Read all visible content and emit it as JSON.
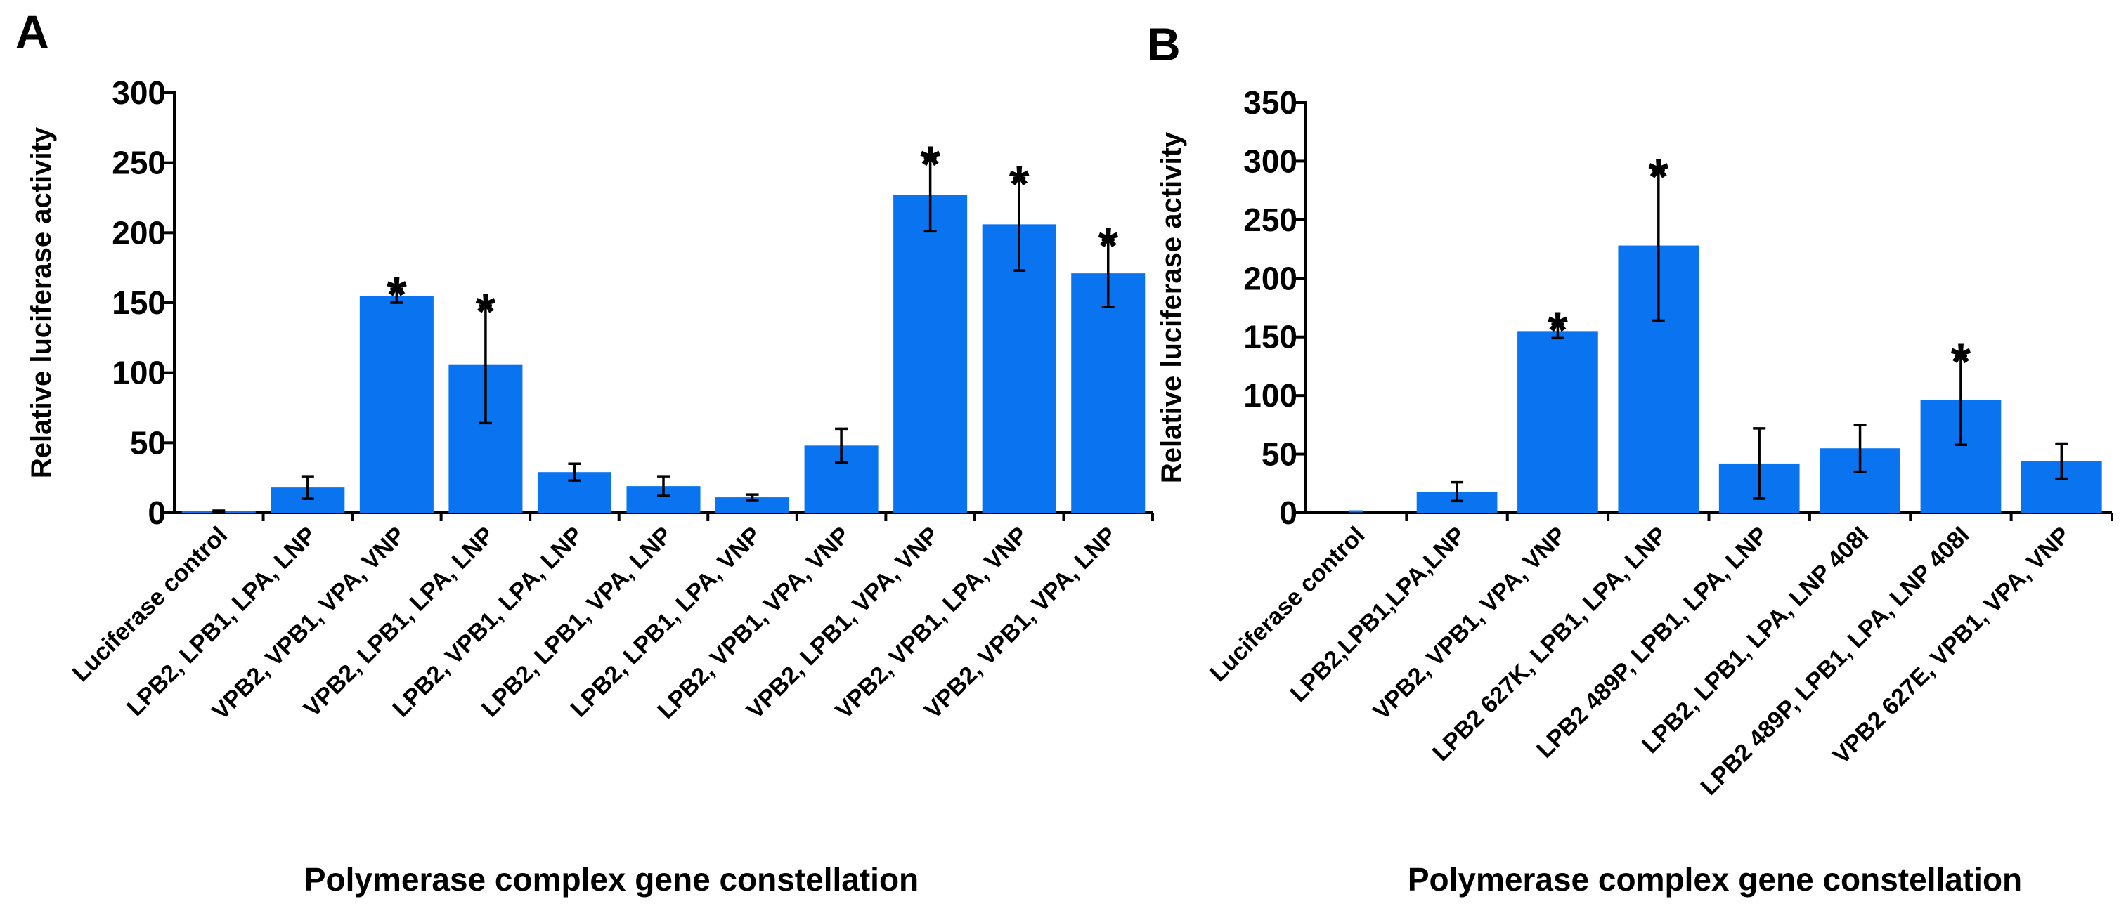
{
  "chart_data": [
    {
      "panel": "A",
      "type": "bar",
      "title": "",
      "xlabel": "Polymerase complex gene constellation",
      "ylabel": "Relative luciferase activity",
      "ylim": [
        0,
        300
      ],
      "yticks": [
        0,
        50,
        100,
        150,
        200,
        250,
        300
      ],
      "categories": [
        "Luciferase control",
        "LPB2, LPB1, LPA, LNP",
        "VPB2, VPB1, VPA, VNP",
        "VPB2, LPB1, LPA, LNP",
        "LPB2, VPB1, LPA, LNP",
        "LPB2, LPB1, VPA, LNP",
        "LPB2, LPB1, LPA, VNP",
        "LPB2, VPB1, VPA, VNP",
        "VPB2, LPB1, VPA, VNP",
        "VPB2, VPB1, LPA, VNP",
        "VPB2, VPB1, VPA, LNP"
      ],
      "values": [
        1,
        18,
        155,
        106,
        29,
        19,
        11,
        48,
        227,
        206,
        171
      ],
      "errors": [
        0.5,
        8,
        5,
        42,
        6,
        7,
        2,
        12,
        26,
        33,
        24
      ],
      "significant": [
        false,
        false,
        true,
        true,
        false,
        false,
        false,
        false,
        true,
        true,
        true
      ],
      "significance_marker": "*"
    },
    {
      "panel": "B",
      "type": "bar",
      "title": "",
      "xlabel": "Polymerase complex gene constellation",
      "ylabel": "Relative luciferase activity",
      "ylim": [
        0,
        350
      ],
      "yticks": [
        0,
        50,
        100,
        150,
        200,
        250,
        300,
        350
      ],
      "categories": [
        "Luciferase control",
        "LPB2,LPB1,LPA,LNP",
        "VPB2, VPB1, VPA, VNP",
        "LPB2 627K, LPB1, LPA, LNP",
        "LPB2 489P, LPB1, LPA, LNP",
        "LPB2, LPB1, LPA, LNP 408I",
        "LPB2 489P, LPB1, LPA, LNP 408I",
        "VPB2 627E, VPB1, VPA, VNP"
      ],
      "values": [
        0,
        18,
        155,
        228,
        42,
        55,
        96,
        44
      ],
      "errors": [
        0,
        8,
        6,
        64,
        30,
        20,
        38,
        15
      ],
      "significant": [
        false,
        false,
        true,
        true,
        false,
        false,
        true,
        false
      ],
      "significance_marker": "*"
    }
  ]
}
